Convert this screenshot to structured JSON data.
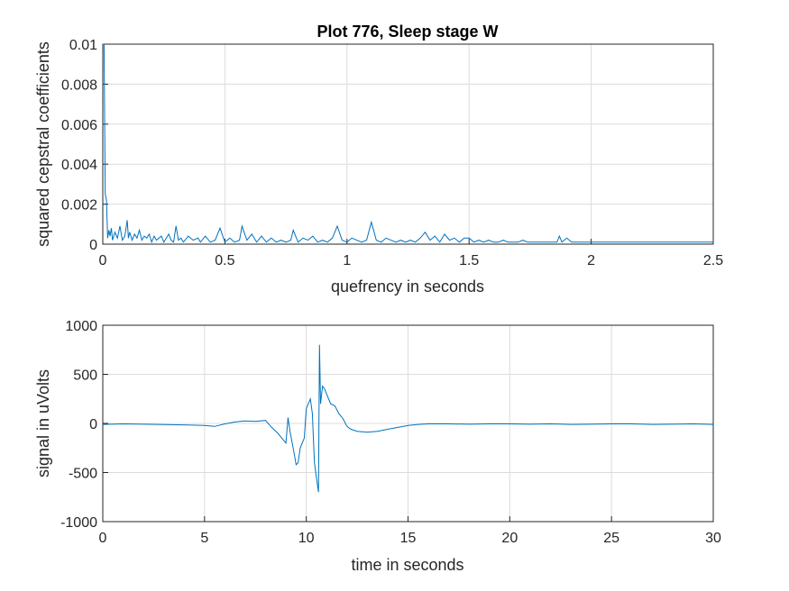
{
  "chart_data": [
    {
      "type": "line",
      "title": "Plot 776, Sleep stage W",
      "xlabel": "quefrency in seconds",
      "ylabel": "squared cepstral coefficients",
      "xlim": [
        0,
        2.5
      ],
      "ylim": [
        0,
        0.01
      ],
      "grid": true,
      "xticks": [
        "0",
        "0.5",
        "1",
        "1.5",
        "2",
        "2.5"
      ],
      "yticks": [
        "0",
        "0.002",
        "0.004",
        "0.006",
        "0.008",
        "0.01"
      ],
      "color": "#0072bd",
      "series": [
        {
          "x": [
            0,
            0.005,
            0.01,
            0.015,
            0.02,
            0.025,
            0.03,
            0.035,
            0.04,
            0.05,
            0.06,
            0.07,
            0.08,
            0.09,
            0.1,
            0.105,
            0.11,
            0.12,
            0.13,
            0.14,
            0.15,
            0.16,
            0.17,
            0.18,
            0.19,
            0.2,
            0.21,
            0.22,
            0.23,
            0.24,
            0.25,
            0.26,
            0.27,
            0.28,
            0.29,
            0.3,
            0.31,
            0.32,
            0.33,
            0.35,
            0.37,
            0.39,
            0.4,
            0.42,
            0.44,
            0.46,
            0.48,
            0.5,
            0.52,
            0.54,
            0.56,
            0.57,
            0.59,
            0.61,
            0.63,
            0.65,
            0.67,
            0.69,
            0.71,
            0.73,
            0.75,
            0.77,
            0.78,
            0.8,
            0.82,
            0.84,
            0.86,
            0.88,
            0.9,
            0.92,
            0.94,
            0.96,
            0.98,
            1.0,
            1.02,
            1.04,
            1.06,
            1.08,
            1.1,
            1.12,
            1.14,
            1.16,
            1.18,
            1.2,
            1.22,
            1.24,
            1.26,
            1.28,
            1.3,
            1.32,
            1.34,
            1.36,
            1.38,
            1.4,
            1.42,
            1.44,
            1.46,
            1.48,
            1.5,
            1.52,
            1.54,
            1.56,
            1.58,
            1.6,
            1.62,
            1.64,
            1.66,
            1.68,
            1.7,
            1.72,
            1.74,
            1.76,
            1.78,
            1.8,
            1.82,
            1.84,
            1.86,
            1.87,
            1.88,
            1.9,
            1.92,
            1.94,
            1.96,
            1.98,
            2.0,
            2.05,
            2.1,
            2.15,
            2.2,
            2.25,
            2.3,
            2.35,
            2.4,
            2.45,
            2.5
          ],
          "y": [
            0.01,
            0.01,
            0.0025,
            0.0022,
            0.0003,
            0.0007,
            0.0004,
            0.0008,
            0.0002,
            0.0006,
            0.0003,
            0.0009,
            0.0002,
            0.0004,
            0.0012,
            0.0003,
            0.0006,
            0.0002,
            0.0005,
            0.0003,
            0.0007,
            0.0002,
            0.0004,
            0.0003,
            0.0005,
            0.0001,
            0.0004,
            0.0002,
            0.0003,
            0.0004,
            0.0001,
            0.0003,
            0.0005,
            0.0002,
            0.0001,
            0.0009,
            0.0002,
            0.0003,
            0.0001,
            0.0004,
            0.0002,
            0.0003,
            0.0001,
            0.0004,
            0.0001,
            0.0002,
            0.0008,
            0.0001,
            0.0003,
            0.0001,
            0.0002,
            0.0009,
            0.0002,
            0.0005,
            0.0001,
            0.0004,
            0.0001,
            0.0003,
            0.0001,
            0.0002,
            0.0001,
            0.0002,
            0.0007,
            0.0001,
            0.0003,
            0.0002,
            0.0004,
            0.0001,
            0.0002,
            0.0001,
            0.0003,
            0.0009,
            0.0002,
            0.0001,
            0.0003,
            0.0002,
            0.0001,
            0.0002,
            0.0011,
            0.0002,
            0.0001,
            0.0003,
            0.0002,
            0.0001,
            0.0002,
            0.0001,
            0.0002,
            0.0001,
            0.0003,
            0.0006,
            0.0002,
            0.0004,
            0.0001,
            0.0005,
            0.0002,
            0.0003,
            0.0001,
            0.0003,
            0.0003,
            0.0001,
            0.0002,
            0.0001,
            0.0002,
            0.0001,
            0.0001,
            0.0002,
            0.0001,
            0.0001,
            0.0001,
            0.0002,
            0.0001,
            0.0001,
            0.0001,
            0.0001,
            0.0001,
            0.0001,
            0.0001,
            0.0004,
            0.0001,
            0.0003,
            0.0001,
            0.0001,
            0.0001,
            0.0001,
            0.0001,
            0.0001,
            0.0001,
            0.0001,
            0.0001,
            0.0001,
            0.0001,
            0.0001,
            0.0001,
            0.0001,
            0.0001
          ]
        }
      ]
    },
    {
      "type": "line",
      "title": "",
      "xlabel": "time in seconds",
      "ylabel": "signal in uVolts",
      "xlim": [
        0,
        30
      ],
      "ylim": [
        -1000,
        1000
      ],
      "grid": true,
      "xticks": [
        "0",
        "5",
        "10",
        "15",
        "20",
        "25",
        "30"
      ],
      "yticks": [
        "-1000",
        "-500",
        "0",
        "500",
        "1000"
      ],
      "color": "#0072bd",
      "series": [
        {
          "x": [
            0,
            1,
            2,
            3,
            4,
            5,
            5.5,
            5.7,
            6,
            6.5,
            7,
            7.5,
            8,
            8.3,
            8.6,
            8.8,
            9.0,
            9.1,
            9.2,
            9.4,
            9.5,
            9.6,
            9.7,
            9.9,
            10.0,
            10.1,
            10.2,
            10.3,
            10.4,
            10.5,
            10.6,
            10.65,
            10.7,
            10.8,
            10.9,
            11.0,
            11.2,
            11.4,
            11.6,
            11.8,
            12.0,
            12.2,
            12.5,
            13.0,
            13.5,
            14.0,
            14.5,
            15.0,
            15.5,
            16,
            17,
            18,
            19,
            20,
            21,
            22,
            23,
            24,
            25,
            26,
            27,
            28,
            29,
            30
          ],
          "y": [
            -10,
            -5,
            -8,
            -12,
            -15,
            -20,
            -30,
            -20,
            -5,
            15,
            25,
            20,
            30,
            -40,
            -100,
            -150,
            -200,
            60,
            -80,
            -300,
            -420,
            -400,
            -250,
            -150,
            150,
            200,
            250,
            100,
            -400,
            -550,
            -700,
            800,
            200,
            380,
            350,
            300,
            200,
            180,
            100,
            50,
            -30,
            -60,
            -80,
            -90,
            -80,
            -60,
            -40,
            -20,
            -10,
            -5,
            -5,
            -8,
            -5,
            -5,
            -8,
            -5,
            -10,
            -8,
            -5,
            -5,
            -10,
            -8,
            -5,
            -10
          ]
        }
      ]
    }
  ]
}
